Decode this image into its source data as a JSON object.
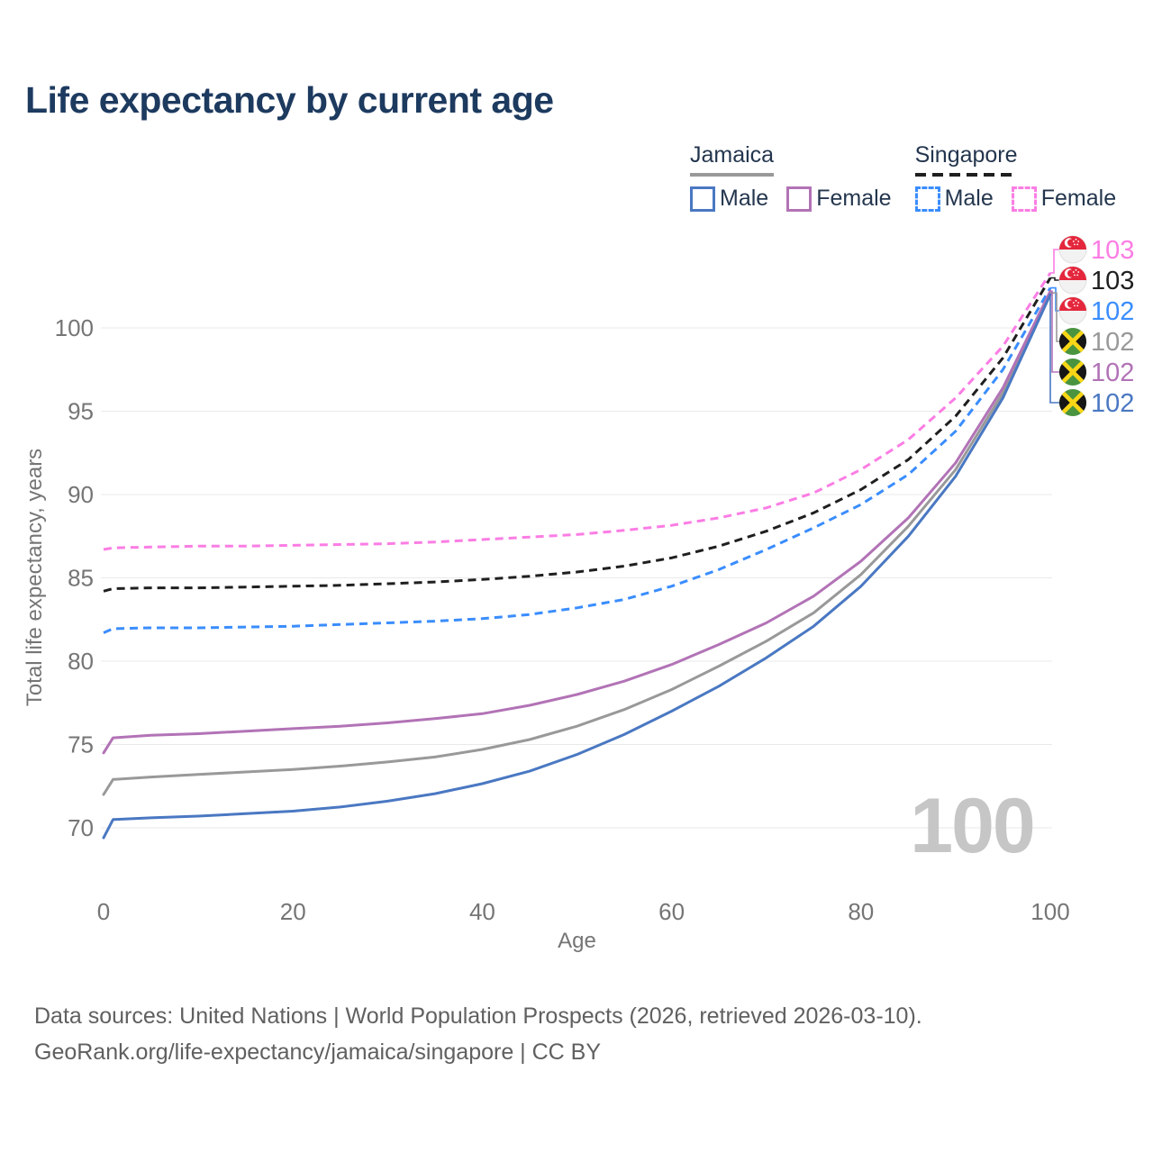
{
  "title": "Life expectancy by current age",
  "legend": {
    "groups": [
      {
        "name": "Jamaica",
        "line_style": "solid",
        "line_color": "#999999",
        "items": [
          {
            "label": "Male",
            "color": "#4a78c2",
            "style": "solid"
          },
          {
            "label": "Female",
            "color": "#b273b6",
            "style": "solid"
          }
        ]
      },
      {
        "name": "Singapore",
        "line_style": "dashed",
        "line_color": "#1f1f1f",
        "items": [
          {
            "label": "Male",
            "color": "#3a8dff",
            "style": "dashed"
          },
          {
            "label": "Female",
            "color": "#fb7de4",
            "style": "dashed"
          }
        ]
      }
    ]
  },
  "watermark": "100",
  "chart_data": {
    "type": "line",
    "title": "Life expectancy by current age",
    "xlabel": "Age",
    "ylabel": "Total life expectancy, years",
    "x_ticks": [
      0,
      20,
      40,
      60,
      80,
      100
    ],
    "y_ticks": [
      70,
      75,
      80,
      85,
      90,
      95,
      100
    ],
    "xlim": [
      0,
      100
    ],
    "ylim": [
      67,
      104
    ],
    "grid": true,
    "legend_position": "top-right",
    "ages": [
      0,
      1,
      5,
      10,
      15,
      20,
      25,
      30,
      35,
      40,
      45,
      50,
      55,
      60,
      65,
      70,
      75,
      80,
      85,
      90,
      95,
      100
    ],
    "series": [
      {
        "name": "Singapore Female",
        "country": "Singapore",
        "sex": "Female",
        "color": "#fb7de4",
        "dash": true,
        "flag": "sg",
        "end_label": "103",
        "values": [
          86.7,
          86.8,
          86.85,
          86.9,
          86.9,
          86.95,
          87.0,
          87.05,
          87.15,
          87.3,
          87.45,
          87.6,
          87.85,
          88.15,
          88.6,
          89.2,
          90.1,
          91.5,
          93.3,
          95.8,
          98.9,
          103.3
        ]
      },
      {
        "name": "Singapore",
        "country": "Singapore",
        "sex": "All",
        "color": "#1f1f1f",
        "dash": true,
        "flag": "sg",
        "end_label": "103",
        "values": [
          84.2,
          84.35,
          84.4,
          84.4,
          84.45,
          84.5,
          84.55,
          84.65,
          84.75,
          84.9,
          85.1,
          85.35,
          85.7,
          86.2,
          86.9,
          87.8,
          88.9,
          90.3,
          92.1,
          94.7,
          98.2,
          103.0
        ]
      },
      {
        "name": "Singapore Male",
        "country": "Singapore",
        "sex": "Male",
        "color": "#3a8dff",
        "dash": true,
        "flag": "sg",
        "end_label": "102",
        "values": [
          81.7,
          81.95,
          82.0,
          82.0,
          82.05,
          82.1,
          82.2,
          82.3,
          82.4,
          82.55,
          82.8,
          83.2,
          83.7,
          84.5,
          85.5,
          86.7,
          88.0,
          89.4,
          91.2,
          93.8,
          97.5,
          102.4
        ]
      },
      {
        "name": "Jamaica",
        "country": "Jamaica",
        "sex": "All",
        "color": "#999999",
        "dash": false,
        "flag": "jm",
        "end_label": "102",
        "values": [
          72.0,
          72.9,
          73.05,
          73.2,
          73.35,
          73.5,
          73.7,
          73.95,
          74.25,
          74.7,
          75.3,
          76.1,
          77.1,
          78.3,
          79.7,
          81.2,
          82.9,
          85.2,
          88.1,
          91.5,
          96.1,
          102.1
        ]
      },
      {
        "name": "Jamaica Female",
        "country": "Jamaica",
        "sex": "Female",
        "color": "#b273b6",
        "dash": false,
        "flag": "jm",
        "end_label": "102",
        "values": [
          74.5,
          75.4,
          75.55,
          75.65,
          75.8,
          75.95,
          76.1,
          76.3,
          76.55,
          76.85,
          77.35,
          78.0,
          78.8,
          79.8,
          81.0,
          82.3,
          83.9,
          86.0,
          88.6,
          91.9,
          96.4,
          102.2
        ]
      },
      {
        "name": "Jamaica Male",
        "country": "Jamaica",
        "sex": "Male",
        "color": "#4a78c2",
        "dash": false,
        "flag": "jm",
        "end_label": "102",
        "values": [
          69.4,
          70.5,
          70.6,
          70.7,
          70.85,
          71.0,
          71.25,
          71.6,
          72.05,
          72.65,
          73.4,
          74.4,
          75.6,
          77.0,
          78.5,
          80.2,
          82.1,
          84.5,
          87.5,
          91.1,
          95.8,
          102.0
        ]
      }
    ]
  },
  "footer": {
    "line1": "Data sources: United Nations | World Population Prospects (2026, retrieved 2026-03-10).",
    "line2": "GeoRank.org/life-expectancy/jamaica/singapore | CC BY"
  }
}
